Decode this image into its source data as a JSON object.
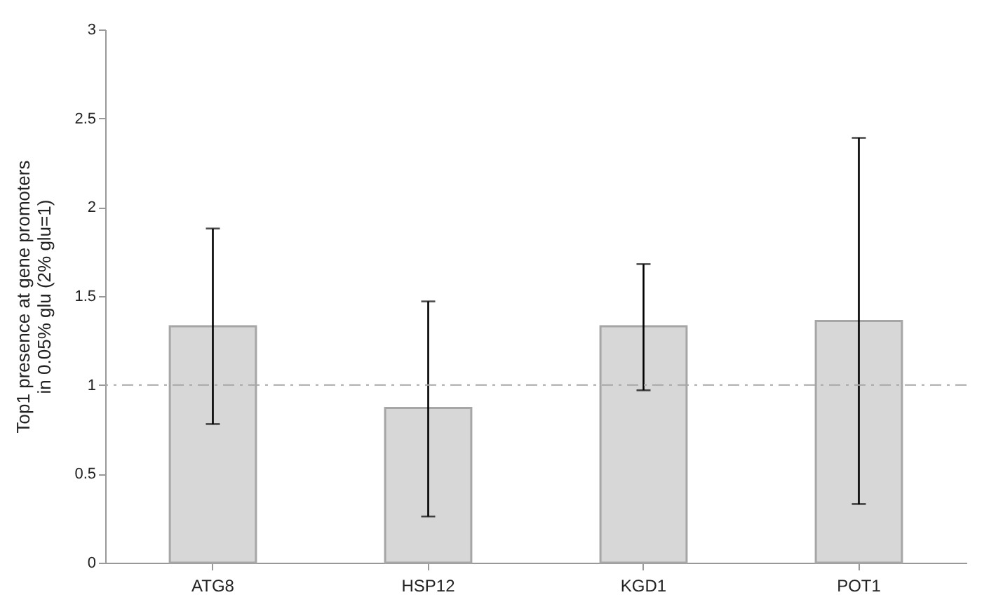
{
  "chart_data": {
    "type": "bar",
    "ylabel": "Top1 presence at gene promoters\nin 0.05% glu  (2% glu=1)",
    "categories": [
      "ATG8",
      "HSP12",
      "KGD1",
      "POT1"
    ],
    "values": [
      1.33,
      0.87,
      1.33,
      1.36
    ],
    "errors": [
      [
        0.78,
        1.88
      ],
      [
        0.26,
        1.47
      ],
      [
        0.97,
        1.68
      ],
      [
        0.33,
        2.39
      ]
    ],
    "color": "#a6a6a6",
    "ylim": [
      0,
      3
    ],
    "yticks": [
      0,
      0.5,
      1,
      1.5,
      2,
      2.5,
      3
    ],
    "grid": false,
    "ref_lines": [
      {
        "axis": "y",
        "value": 1,
        "color": "#a6a6a6",
        "line_style": "dashdot"
      }
    ]
  }
}
